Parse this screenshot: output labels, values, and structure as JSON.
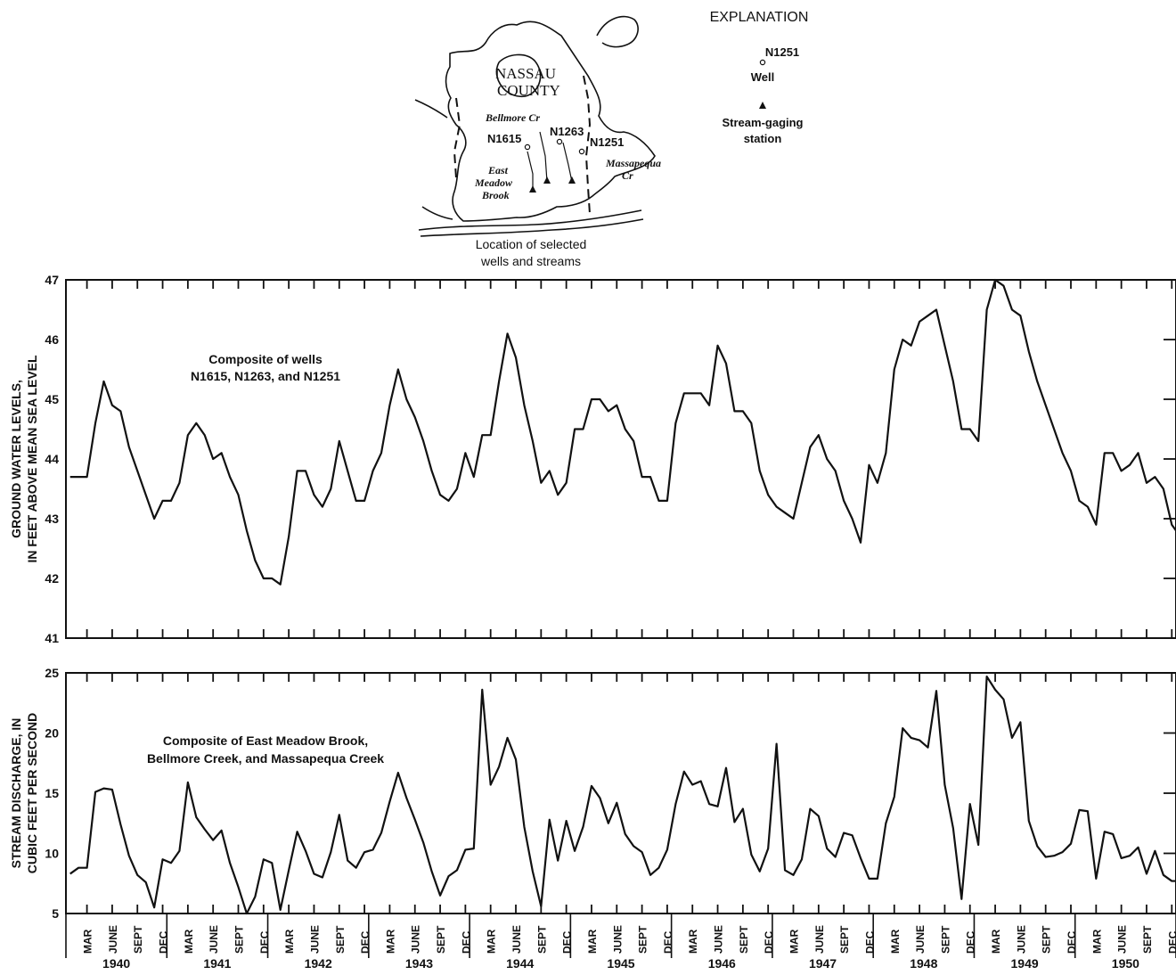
{
  "map": {
    "county_label_1": "NASSAU",
    "county_label_2": "COUNTY",
    "stream_bellmore": "Bellmore Cr",
    "stream_east_meadow_1": "East",
    "stream_east_meadow_2": "Meadow",
    "stream_east_meadow_3": "Brook",
    "stream_massapequa_1": "Massapequa",
    "stream_massapequa_2": "Cr",
    "well_a": "N1615",
    "well_b": "N1263",
    "well_c": "N1251",
    "caption_1": "Location of selected",
    "caption_2": "wells and streams"
  },
  "explanation": {
    "title": "EXPLANATION",
    "well_id": "N1251",
    "well_label": "Well",
    "station_label_1": "Stream-gaging",
    "station_label_2": "station"
  },
  "months": [
    "MAR",
    "JUNE",
    "SEPT",
    "DEC"
  ],
  "years": [
    "1940",
    "1941",
    "1942",
    "1943",
    "1944",
    "1945",
    "1946",
    "1947",
    "1948",
    "1949",
    "1950"
  ],
  "chart_data": [
    {
      "type": "line",
      "ylabel_1": "GROUND WATER LEVELS,",
      "ylabel_2": "IN FEET ABOVE MEAN SEA LEVEL",
      "annotation_1": "Composite of wells",
      "annotation_2": "N1615, N1263, and N1251",
      "ylim": [
        41,
        47
      ],
      "yticks": [
        41,
        42,
        43,
        44,
        45,
        46,
        47
      ],
      "x_start_year": 1940,
      "x_end_year": 1951,
      "x_unit": "month",
      "values": [
        43.7,
        43.7,
        43.7,
        44.6,
        45.3,
        44.9,
        44.8,
        44.2,
        43.8,
        43.4,
        43.0,
        43.3,
        43.3,
        43.6,
        44.4,
        44.6,
        44.4,
        44.0,
        44.1,
        43.7,
        43.4,
        42.8,
        42.3,
        42.0,
        42.0,
        41.9,
        42.7,
        43.8,
        43.8,
        43.4,
        43.2,
        43.5,
        44.3,
        43.8,
        43.3,
        43.3,
        43.8,
        44.1,
        44.9,
        45.5,
        45.0,
        44.7,
        44.3,
        43.8,
        43.4,
        43.3,
        43.5,
        44.1,
        43.7,
        44.4,
        44.4,
        45.3,
        46.1,
        45.7,
        44.9,
        44.3,
        43.6,
        43.8,
        43.4,
        43.6,
        44.5,
        44.5,
        45.0,
        45.0,
        44.8,
        44.9,
        44.5,
        44.3,
        43.7,
        43.7,
        43.3,
        43.3,
        44.6,
        45.1,
        45.1,
        45.1,
        44.9,
        45.9,
        45.6,
        44.8,
        44.8,
        44.6,
        43.8,
        43.4,
        43.2,
        43.1,
        43.0,
        43.6,
        44.2,
        44.4,
        44.0,
        43.8,
        43.3,
        43.0,
        42.6,
        43.9,
        43.6,
        44.1,
        45.5,
        46.0,
        45.9,
        46.3,
        46.4,
        46.5,
        45.9,
        45.3,
        44.5,
        44.5,
        44.3,
        46.5,
        47.0,
        46.9,
        46.5,
        46.4,
        45.8,
        45.3,
        44.9,
        44.5,
        44.1,
        43.8,
        43.3,
        43.2,
        42.9,
        44.1,
        44.1,
        43.8,
        43.9,
        44.1,
        43.6,
        43.7,
        43.5,
        42.9,
        42.7,
        42.8
      ]
    },
    {
      "type": "line",
      "ylabel_1": "STREAM DISCHARGE, IN",
      "ylabel_2": "CUBIC FEET PER SECOND",
      "annotation_1": "Composite of East Meadow Brook,",
      "annotation_2": "Bellmore Creek, and Massapequa Creek",
      "ylim": [
        5,
        25
      ],
      "yticks": [
        5,
        10,
        15,
        20,
        25
      ],
      "x_start_year": 1940,
      "x_end_year": 1951,
      "x_unit": "month",
      "values": [
        8.3,
        8.8,
        8.8,
        15.1,
        15.4,
        15.3,
        12.4,
        9.8,
        8.2,
        7.6,
        5.5,
        9.5,
        9.2,
        10.2,
        15.9,
        13.0,
        12.0,
        11.1,
        11.9,
        9.2,
        7.2,
        5.0,
        6.4,
        9.5,
        9.2,
        5.3,
        8.6,
        11.8,
        10.2,
        8.3,
        8.0,
        10.1,
        13.2,
        9.4,
        8.8,
        10.1,
        10.3,
        11.7,
        14.3,
        16.7,
        14.6,
        12.8,
        10.9,
        8.5,
        6.5,
        8.1,
        8.6,
        10.3,
        10.4,
        23.6,
        15.7,
        17.2,
        19.6,
        17.8,
        12.2,
        8.5,
        5.6,
        12.8,
        9.4,
        12.7,
        10.2,
        12.2,
        15.6,
        14.6,
        12.5,
        14.2,
        11.6,
        10.6,
        10.1,
        8.2,
        8.8,
        10.3,
        14.1,
        16.8,
        15.7,
        16.0,
        14.1,
        13.9,
        17.1,
        12.6,
        13.7,
        9.9,
        8.5,
        10.4,
        19.1,
        8.6,
        8.2,
        9.5,
        13.7,
        13.1,
        10.4,
        9.7,
        11.7,
        11.5,
        9.6,
        7.9,
        7.9,
        12.5,
        14.7,
        20.4,
        19.6,
        19.4,
        18.8,
        23.5,
        15.7,
        12.1,
        6.2,
        14.1,
        10.7,
        24.7,
        23.6,
        22.8,
        19.6,
        20.9,
        12.7,
        10.6,
        9.7,
        9.8,
        10.1,
        10.8,
        13.6,
        13.5,
        7.9,
        11.8,
        11.6,
        9.6,
        9.8,
        10.5,
        8.3,
        10.2,
        8.2,
        7.7,
        7.7,
        8.0
      ]
    }
  ]
}
